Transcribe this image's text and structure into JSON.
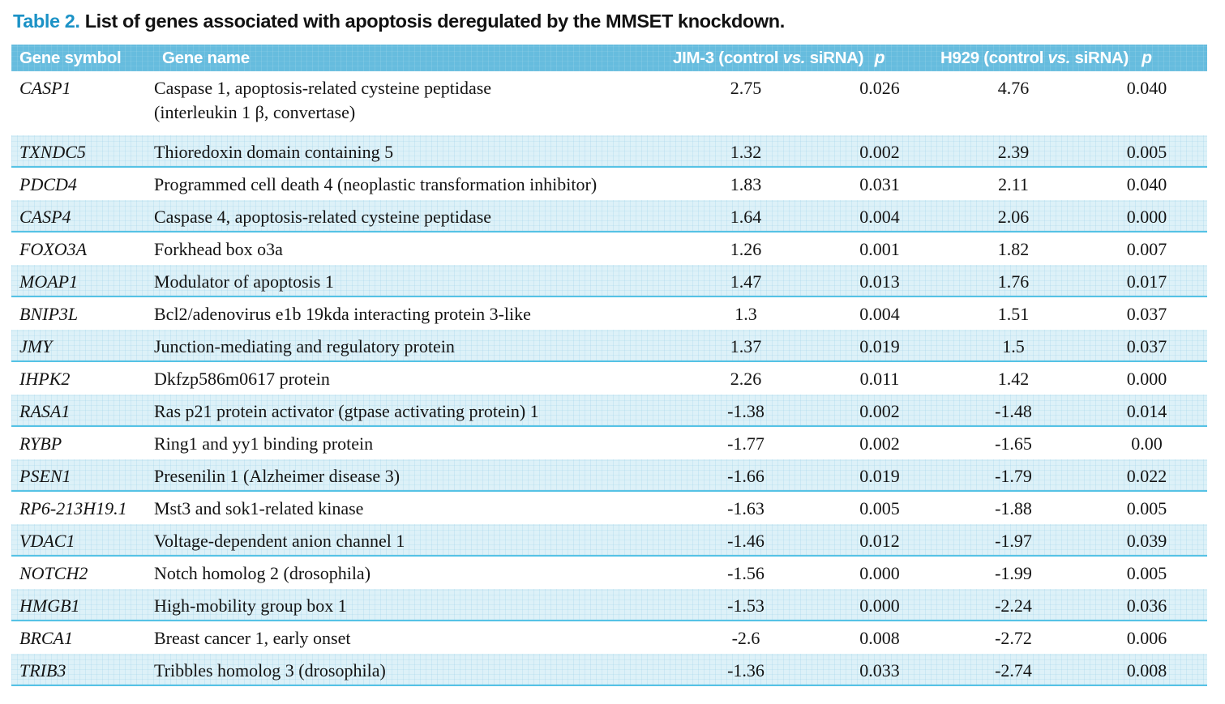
{
  "title": {
    "label": "Table 2.",
    "text": " List of genes associated with apoptosis deregulated by the MMSET knockdown."
  },
  "header": {
    "gene_symbol": "Gene symbol",
    "gene_name": "Gene name",
    "jim3_pre": "JIM-3 (control ",
    "jim3_vs": "vs.",
    "jim3_post": " siRNA)",
    "p1": "p",
    "h929_pre": "H929 (control ",
    "h929_vs": "vs.",
    "h929_post": " siRNA)",
    "p2": "p"
  },
  "colors": {
    "title_accent": "#1b92c6",
    "header_bg": "#66bcde",
    "stripe_bg": "#ddf1f8",
    "separator": "#55c2e5"
  },
  "table": {
    "rows": [
      {
        "symbol": "CASP1",
        "name": "Caspase 1, apoptosis-related cysteine peptidase\n(interleukin 1 β, convertase)",
        "jim3": "2.75",
        "p1": "0.026",
        "h929": "4.76",
        "p2": "0.040"
      },
      {
        "symbol": "TXNDC5",
        "name": "Thioredoxin domain containing 5",
        "jim3": "1.32",
        "p1": "0.002",
        "h929": "2.39",
        "p2": "0.005"
      },
      {
        "symbol": "PDCD4",
        "name": "Programmed cell death 4 (neoplastic transformation inhibitor)",
        "jim3": "1.83",
        "p1": "0.031",
        "h929": "2.11",
        "p2": "0.040"
      },
      {
        "symbol": "CASP4",
        "name": "Caspase 4, apoptosis-related cysteine peptidase",
        "jim3": "1.64",
        "p1": "0.004",
        "h929": "2.06",
        "p2": "0.000"
      },
      {
        "symbol": "FOXO3A",
        "name": "Forkhead box o3a",
        "jim3": "1.26",
        "p1": "0.001",
        "h929": "1.82",
        "p2": "0.007"
      },
      {
        "symbol": "MOAP1",
        "name": "Modulator of apoptosis 1",
        "jim3": "1.47",
        "p1": "0.013",
        "h929": "1.76",
        "p2": "0.017"
      },
      {
        "symbol": "BNIP3L",
        "name": "Bcl2/adenovirus e1b 19kda interacting protein 3-like",
        "jim3": "1.3",
        "p1": "0.004",
        "h929": "1.51",
        "p2": "0.037"
      },
      {
        "symbol": "JMY",
        "name": "Junction-mediating and regulatory protein",
        "jim3": "1.37",
        "p1": "0.019",
        "h929": "1.5",
        "p2": "0.037"
      },
      {
        "symbol": "IHPK2",
        "name": "Dkfzp586m0617 protein",
        "jim3": "2.26",
        "p1": "0.011",
        "h929": "1.42",
        "p2": "0.000"
      },
      {
        "symbol": "RASA1",
        "name": "Ras p21 protein activator (gtpase activating protein) 1",
        "jim3": "-1.38",
        "p1": "0.002",
        "h929": "-1.48",
        "p2": "0.014"
      },
      {
        "symbol": "RYBP",
        "name": "Ring1 and yy1 binding protein",
        "jim3": "-1.77",
        "p1": "0.002",
        "h929": "-1.65",
        "p2": "0.00"
      },
      {
        "symbol": "PSEN1",
        "name": "Presenilin 1 (Alzheimer disease 3)",
        "jim3": "-1.66",
        "p1": "0.019",
        "h929": "-1.79",
        "p2": "0.022"
      },
      {
        "symbol": "RP6-213H19.1",
        "name": "Mst3 and sok1-related kinase",
        "jim3": "-1.63",
        "p1": "0.005",
        "h929": "-1.88",
        "p2": "0.005"
      },
      {
        "symbol": "VDAC1",
        "name": "Voltage-dependent anion channel 1",
        "jim3": "-1.46",
        "p1": "0.012",
        "h929": "-1.97",
        "p2": "0.039"
      },
      {
        "symbol": "NOTCH2",
        "name": "Notch homolog 2 (drosophila)",
        "jim3": "-1.56",
        "p1": "0.000",
        "h929": "-1.99",
        "p2": "0.005"
      },
      {
        "symbol": "HMGB1",
        "name": "High-mobility group box 1",
        "jim3": "-1.53",
        "p1": "0.000",
        "h929": "-2.24",
        "p2": "0.036"
      },
      {
        "symbol": "BRCA1",
        "name": "Breast cancer 1, early onset",
        "jim3": "-2.6",
        "p1": "0.008",
        "h929": "-2.72",
        "p2": "0.006"
      },
      {
        "symbol": "TRIB3",
        "name": "Tribbles homolog 3 (drosophila)",
        "jim3": "-1.36",
        "p1": "0.033",
        "h929": "-2.74",
        "p2": "0.008"
      }
    ]
  }
}
